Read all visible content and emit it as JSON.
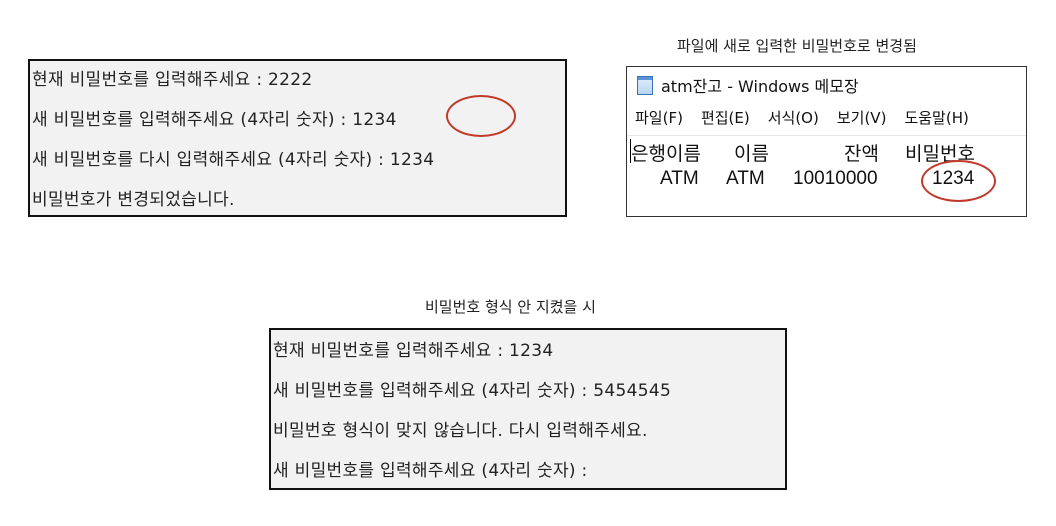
{
  "console1": {
    "lines": [
      "현재 비밀번호를 입력해주세요 : 2222",
      "새 비밀번호를 입력해주세요 (4자리 숫자) : 1234",
      "새 비밀번호를 다시 입력해주세요 (4자리 숫자) : 1234",
      "비밀번호가 변경되었습니다."
    ]
  },
  "notepad_caption": "파일에 새로 입력한 비밀번호로 변경됨",
  "notepad": {
    "title": "atm잔고 - Windows 메모장",
    "menu": [
      "파일(F)",
      "편집(E)",
      "서식(O)",
      "보기(V)",
      "도움말(H)"
    ],
    "columns": [
      "은행이름",
      "이름",
      "잔액",
      "비밀번호"
    ],
    "row": [
      "ATM",
      "ATM",
      "10010000",
      "1234"
    ]
  },
  "invalid_caption": "비밀번호 형식 안 지켰을 시",
  "console2": {
    "lines": [
      "현재 비밀번호를 입력해주세요 : 1234",
      "새 비밀번호를 입력해주세요 (4자리 숫자) : 5454545",
      "비밀번호 형식이 맞지 않습니다. 다시 입력해주세요.",
      "새 비밀번호를 입력해주세요 (4자리 숫자) :"
    ]
  },
  "colors": {
    "highlight_circle": "#c0392b",
    "console_bg": "#f2f2f2"
  }
}
